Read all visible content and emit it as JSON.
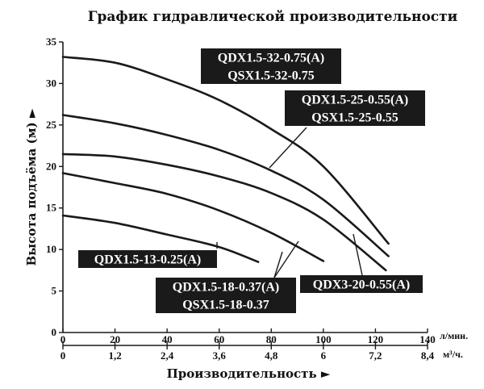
{
  "chart_data": {
    "type": "line",
    "title": "График гидравлической производительности",
    "xlabel": "Производительность ►",
    "ylabel": "Высота подъёма (м) ►",
    "x_unit": "л/мин.",
    "x2_unit": "м³/ч.",
    "xlim": [
      0,
      140
    ],
    "ylim": [
      0,
      35
    ],
    "x_ticks": [
      0,
      20,
      40,
      60,
      80,
      100,
      120,
      140
    ],
    "x2_ticks": [
      "0",
      "1,2",
      "2,4",
      "3,6",
      "4,8",
      "6",
      "7,2",
      "8,4"
    ],
    "y_ticks": [
      0,
      5,
      10,
      15,
      20,
      25,
      30,
      35
    ],
    "grid": false,
    "series": [
      {
        "name": "QDX1.5-32-0.75(A) QSX1.5-32-0.75",
        "label_lines": [
          "QDX1.5-32-0.75(A)",
          "QSX1.5-32-0.75"
        ],
        "x": [
          0,
          20,
          40,
          60,
          80,
          100,
          125
        ],
        "y": [
          33.2,
          32.5,
          30.5,
          28,
          24.5,
          20,
          10.7
        ]
      },
      {
        "name": "QDX1.5-25-0.55(A) QSX1.5-25-0.55",
        "label_lines": [
          "QDX1.5-25-0.55(A)",
          "QSX1.5-25-0.55"
        ],
        "x": [
          0,
          20,
          40,
          60,
          80,
          100,
          125
        ],
        "y": [
          26.2,
          25.2,
          23.8,
          22,
          19.5,
          16,
          9.2
        ]
      },
      {
        "name": "QDX3-20-0.55(A)",
        "label_lines": [
          "QDX3-20-0.55(A)"
        ],
        "x": [
          0,
          20,
          40,
          60,
          80,
          100,
          124
        ],
        "y": [
          21.5,
          21.2,
          20.2,
          18.8,
          16.8,
          13.6,
          7.5
        ]
      },
      {
        "name": "QDX1.5-18-0.37(A) QSX1.5-18-0.37",
        "label_lines": [
          "QDX1.5-18-0.37(A)",
          "QSX1.5-18-0.37"
        ],
        "x": [
          0,
          20,
          40,
          60,
          80,
          100
        ],
        "y": [
          19.2,
          18,
          16.7,
          14.7,
          12,
          8.6
        ]
      },
      {
        "name": "QDX1.5-13-0.25(A)",
        "label_lines": [
          "QDX1.5-13-0.25(A)"
        ],
        "x": [
          0,
          20,
          40,
          60,
          75
        ],
        "y": [
          14.1,
          13.2,
          11.8,
          10.3,
          8.5
        ]
      }
    ]
  }
}
